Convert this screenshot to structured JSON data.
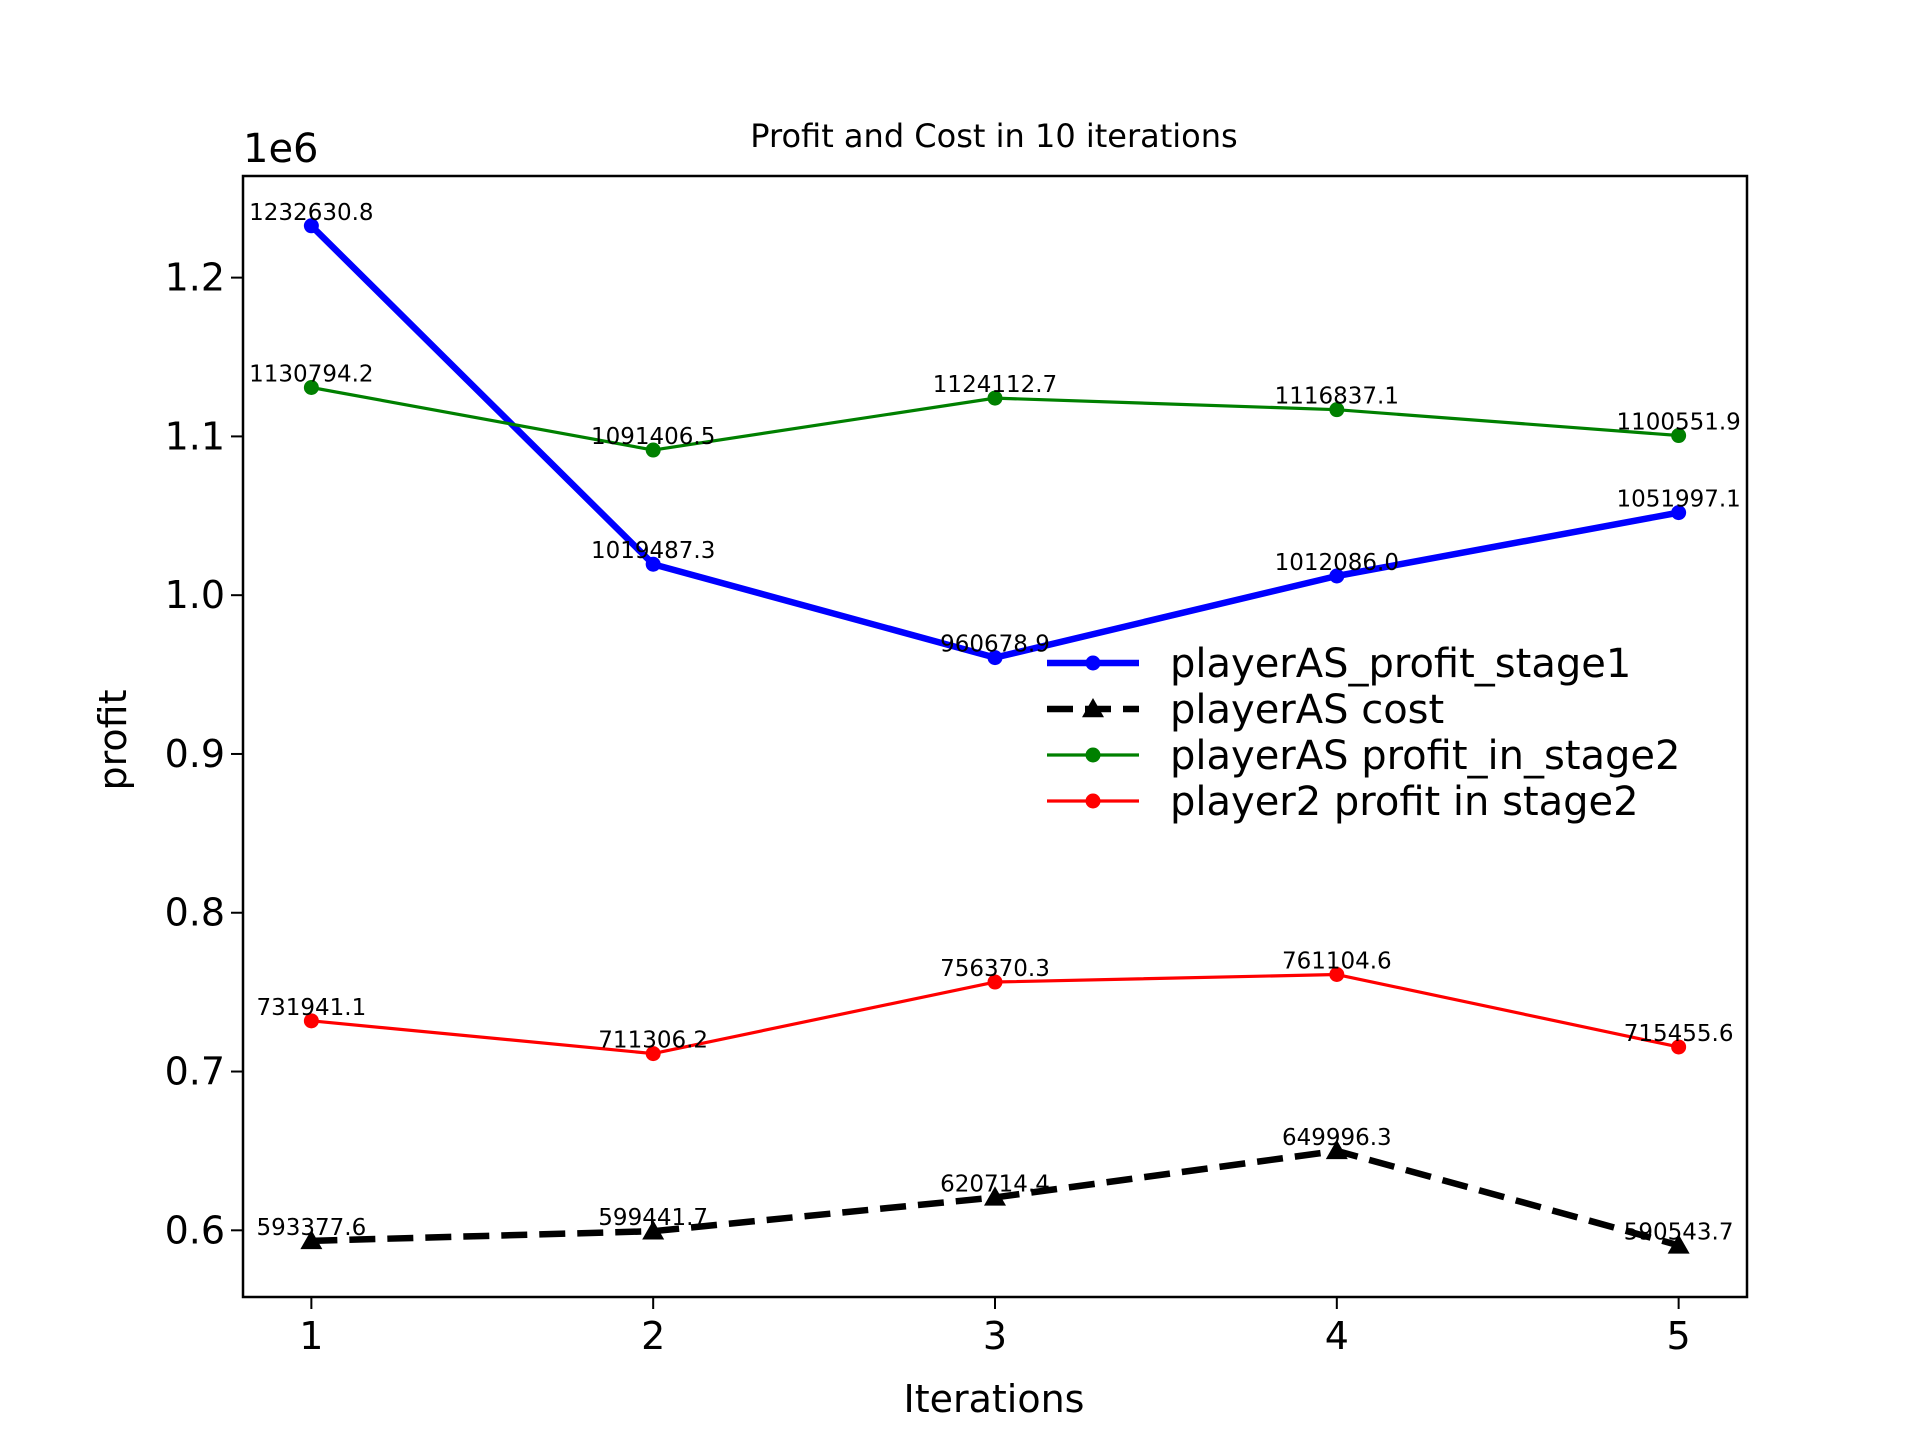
{
  "chart_data": {
    "type": "line",
    "title": "Profit and Cost in 10 iterations",
    "xlabel": "Iterations",
    "ylabel": "profit",
    "y_offset_label": "1e6",
    "x": [
      1,
      2,
      3,
      4,
      5
    ],
    "x_ticks": [
      "1",
      "2",
      "3",
      "4",
      "5"
    ],
    "xlim": [
      0.8,
      5.2
    ],
    "y_ticks": [
      "0.6",
      "0.7",
      "0.8",
      "0.9",
      "1.0",
      "1.1",
      "1.2"
    ],
    "y_tick_values": [
      600000,
      700000,
      800000,
      900000,
      1000000,
      1100000,
      1200000
    ],
    "ylim": [
      558000,
      1264000
    ],
    "grid": false,
    "legend_position": "center-right",
    "series": [
      {
        "name": "playerAS_profit_stage1",
        "color": "#0000ff",
        "style": "solid",
        "marker": "circle",
        "values": [
          1232630.8,
          1019487.3,
          960678.9,
          1012086.0,
          1051997.1
        ],
        "labels": [
          "1232630.8",
          "1019487.3",
          "960678.9",
          "1012086.0",
          "1051997.1"
        ]
      },
      {
        "name": "playerAS cost",
        "color": "#000000",
        "style": "dashed",
        "marker": "triangle",
        "values": [
          593377.6,
          599441.7,
          620714.4,
          649996.3,
          590543.7
        ],
        "labels": [
          "593377.6",
          "599441.7",
          "620714.4",
          "649996.3",
          "590543.7"
        ]
      },
      {
        "name": "playerAS profit_in_stage2",
        "color": "#008000",
        "style": "solid",
        "marker": "circle",
        "values": [
          1130794.2,
          1091406.5,
          1124112.7,
          1116837.1,
          1100551.9
        ],
        "labels": [
          "1130794.2",
          "1091406.5",
          "1124112.7",
          "1116837.1",
          "1100551.9"
        ]
      },
      {
        "name": "player2 profit in stage2",
        "color": "#ff0000",
        "style": "solid",
        "marker": "circle",
        "values": [
          731941.1,
          711306.2,
          756370.3,
          761104.6,
          715455.6
        ],
        "labels": [
          "731941.1",
          "711306.2",
          "756370.3",
          "761104.6",
          "715455.6"
        ]
      }
    ]
  }
}
